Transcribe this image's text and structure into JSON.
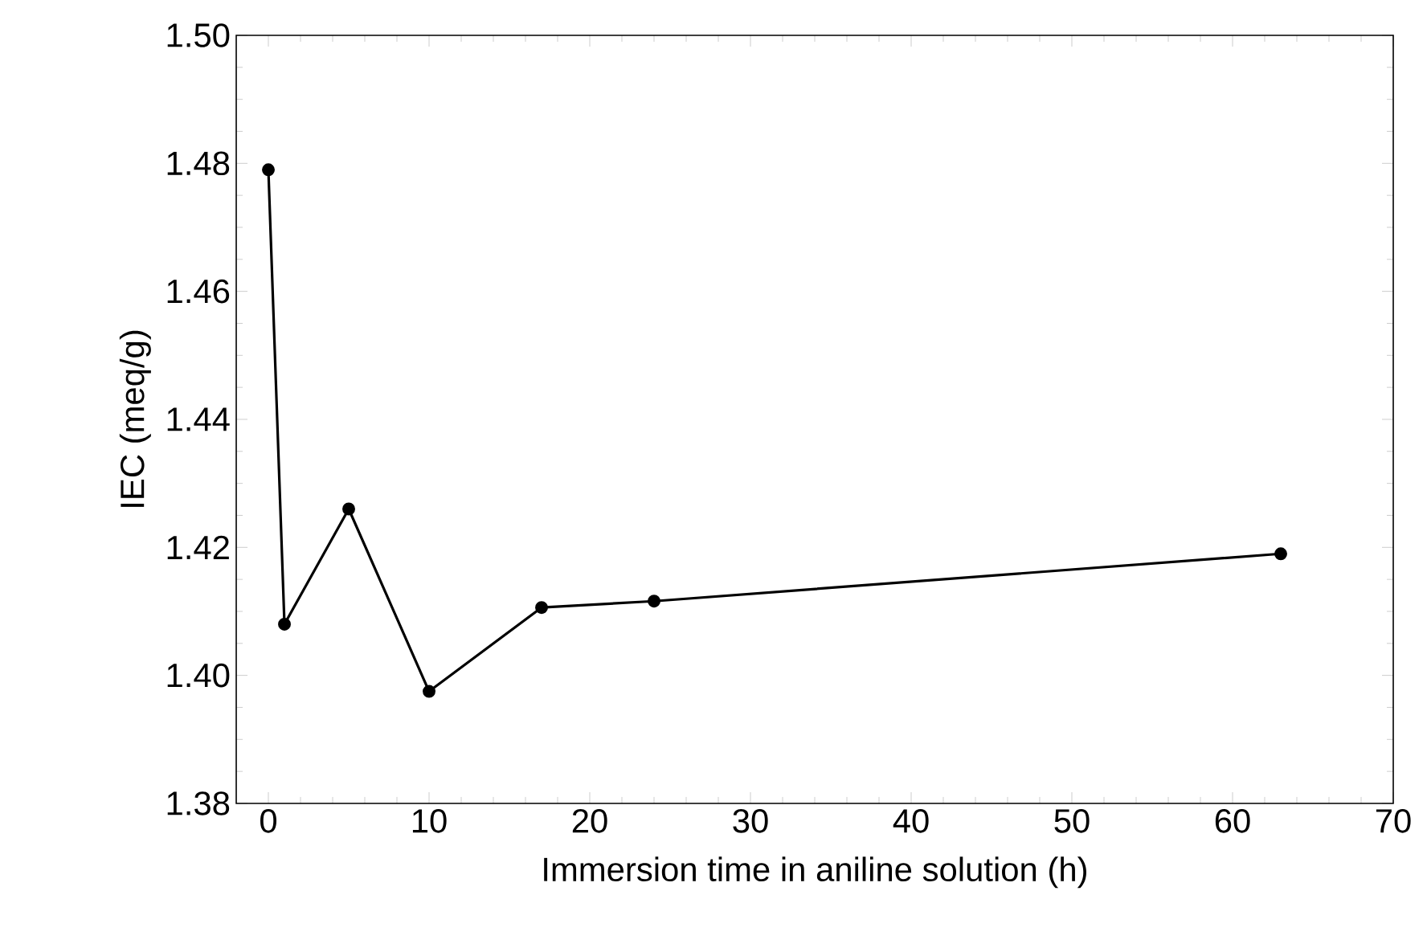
{
  "chart_data": {
    "type": "line",
    "xlabel": "Immersion time in aniline solution (h)",
    "ylabel": "IEC (meq/g)",
    "x": [
      0,
      1,
      5,
      10,
      17,
      24,
      63
    ],
    "series": [
      {
        "color": "#000000",
        "values": [
          1.479,
          1.408,
          1.426,
          1.3975,
          1.4106,
          1.4116,
          1.419
        ]
      }
    ],
    "xlim": [
      -2,
      70
    ],
    "ylim": [
      1.38,
      1.5
    ],
    "xticks": [
      0,
      10,
      20,
      30,
      40,
      50,
      60,
      70
    ],
    "yticks": [
      1.38,
      {
        "value": 1.4,
        "label": "1.40"
      },
      1.42,
      1.44,
      1.46,
      1.48,
      {
        "value": 1.5,
        "label": "1.50"
      }
    ],
    "marker": "circle",
    "line_style": "solid"
  }
}
